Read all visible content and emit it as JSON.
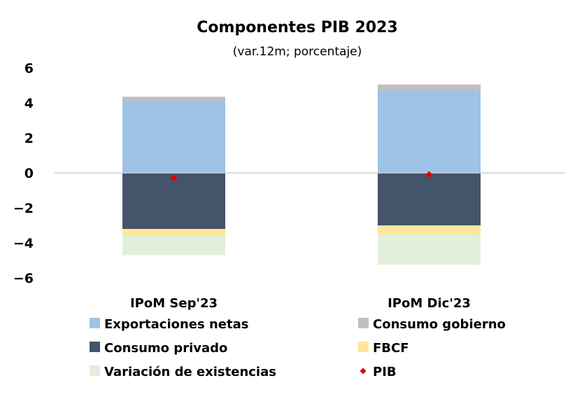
{
  "chart_data": {
    "type": "bar",
    "stacked": true,
    "title": "Componentes PIB 2023",
    "subtitle": "(var.12m; porcentaje)",
    "ylim": [
      -6,
      6
    ],
    "yticks": [
      "6",
      "4",
      "2",
      "0",
      "−2",
      "−4",
      "−6"
    ],
    "categories": [
      "IPoM Sep'23",
      "IPoM Dic'23"
    ],
    "series": [
      {
        "name": "Exportaciones netas",
        "color": "#9dc3e6",
        "values": [
          4.1,
          4.7
        ]
      },
      {
        "name": "Consumo gobierno",
        "color": "#bfbfbf",
        "values": [
          0.25,
          0.35
        ]
      },
      {
        "name": "Consumo privado",
        "color": "#44546a",
        "values": [
          -3.2,
          -3.0
        ]
      },
      {
        "name": "FBCF",
        "color": "#ffe699",
        "values": [
          -0.35,
          -0.5
        ]
      },
      {
        "name": "Variación de existencias",
        "color": "#e2efda",
        "values": [
          -1.15,
          -1.75
        ]
      }
    ],
    "gdp": {
      "name": "PIB",
      "color": "#e00000",
      "values": [
        -0.3,
        -0.1
      ]
    },
    "legend_order": [
      "Exportaciones netas",
      "Consumo gobierno",
      "Consumo privado",
      "FBCF",
      "Variación de existencias",
      "PIB"
    ],
    "grid": false,
    "legend_position": "bottom"
  }
}
